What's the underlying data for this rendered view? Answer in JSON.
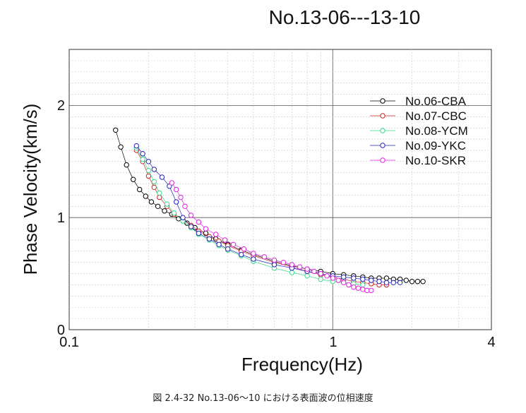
{
  "chart_data": {
    "type": "scatter",
    "title": "No.13-06---13-10",
    "xlabel": "Frequency(Hz)",
    "ylabel": "Phase Velocity(km/s)",
    "xscale": "log",
    "xlim": [
      0.1,
      4
    ],
    "ylim": [
      0,
      2.5
    ],
    "x_tick_labels": [
      "0.1",
      "1",
      "4"
    ],
    "y_tick_labels": [
      "0",
      "1",
      "2"
    ],
    "grid": true,
    "legend_position": "top-right",
    "series": [
      {
        "name": "No.06-CBA",
        "color": "#000000",
        "x": [
          0.15,
          0.157,
          0.165,
          0.175,
          0.185,
          0.195,
          0.205,
          0.217,
          0.23,
          0.245,
          0.26,
          0.28,
          0.3,
          0.33,
          0.36,
          0.4,
          0.45,
          0.5,
          0.6,
          0.7,
          0.8,
          0.9,
          1.0,
          1.1,
          1.2,
          1.3,
          1.4,
          1.5,
          1.6,
          1.7,
          1.8,
          1.9,
          2.0,
          2.1,
          2.2
        ],
        "y": [
          1.78,
          1.63,
          1.47,
          1.34,
          1.25,
          1.19,
          1.14,
          1.1,
          1.06,
          1.03,
          0.99,
          0.95,
          0.91,
          0.86,
          0.81,
          0.76,
          0.71,
          0.67,
          0.61,
          0.57,
          0.54,
          0.52,
          0.5,
          0.49,
          0.48,
          0.47,
          0.46,
          0.46,
          0.46,
          0.45,
          0.45,
          0.44,
          0.43,
          0.43,
          0.43
        ]
      },
      {
        "name": "No.07-CBC",
        "color": "#cc2222",
        "x": [
          0.18,
          0.19,
          0.2,
          0.21,
          0.22,
          0.235,
          0.25,
          0.27,
          0.29,
          0.31,
          0.34,
          0.37,
          0.4,
          0.45,
          0.5,
          0.6,
          0.7,
          0.8,
          0.9,
          1.0,
          1.1,
          1.2,
          1.3,
          1.4,
          1.5,
          1.6
        ],
        "y": [
          1.6,
          1.5,
          1.37,
          1.27,
          1.18,
          1.1,
          1.03,
          0.98,
          0.93,
          0.88,
          0.83,
          0.79,
          0.75,
          0.7,
          0.66,
          0.6,
          0.56,
          0.52,
          0.49,
          0.47,
          0.45,
          0.43,
          0.42,
          0.41,
          0.4,
          0.4
        ]
      },
      {
        "name": "No.08-YCM",
        "color": "#33dd88",
        "x": [
          0.18,
          0.19,
          0.2,
          0.21,
          0.22,
          0.235,
          0.25,
          0.27,
          0.29,
          0.31,
          0.34,
          0.37,
          0.4,
          0.45,
          0.5,
          0.6,
          0.7,
          0.8,
          0.9,
          1.0,
          1.1,
          1.2,
          1.3
        ],
        "y": [
          1.62,
          1.52,
          1.42,
          1.32,
          1.22,
          1.12,
          1.04,
          0.97,
          0.91,
          0.85,
          0.8,
          0.75,
          0.71,
          0.66,
          0.61,
          0.55,
          0.51,
          0.48,
          0.45,
          0.43,
          0.42,
          0.41,
          0.4
        ]
      },
      {
        "name": "No.09-YKC",
        "color": "#2222bb",
        "x": [
          0.18,
          0.19,
          0.2,
          0.21,
          0.225,
          0.24,
          0.255,
          0.27,
          0.29,
          0.31,
          0.34,
          0.37,
          0.4,
          0.45,
          0.5,
          0.6,
          0.7,
          0.8,
          0.9,
          1.0,
          1.1,
          1.2,
          1.3,
          1.4,
          1.5,
          1.6,
          1.7,
          1.8
        ],
        "y": [
          1.64,
          1.57,
          1.5,
          1.43,
          1.36,
          1.28,
          1.14,
          1.0,
          0.92,
          0.86,
          0.81,
          0.76,
          0.72,
          0.67,
          0.63,
          0.58,
          0.55,
          0.52,
          0.5,
          0.48,
          0.47,
          0.46,
          0.45,
          0.44,
          0.43,
          0.42,
          0.42,
          0.42
        ]
      },
      {
        "name": "No.10-SKR",
        "color": "#dd22dd",
        "x": [
          0.245,
          0.255,
          0.265,
          0.275,
          0.29,
          0.31,
          0.33,
          0.36,
          0.39,
          0.42,
          0.46,
          0.5,
          0.55,
          0.6,
          0.65,
          0.7,
          0.75,
          0.8,
          0.85,
          0.9,
          0.95,
          1.0,
          1.05,
          1.1,
          1.15,
          1.2,
          1.25,
          1.3,
          1.35,
          1.4
        ],
        "y": [
          1.31,
          1.25,
          1.18,
          1.1,
          1.02,
          0.96,
          0.9,
          0.85,
          0.8,
          0.76,
          0.72,
          0.68,
          0.65,
          0.62,
          0.6,
          0.58,
          0.56,
          0.54,
          0.52,
          0.5,
          0.48,
          0.46,
          0.44,
          0.42,
          0.4,
          0.38,
          0.37,
          0.36,
          0.35,
          0.35
        ]
      }
    ]
  },
  "caption": "図 2.4-32  No.13-06～10 における表面波の位相速度"
}
